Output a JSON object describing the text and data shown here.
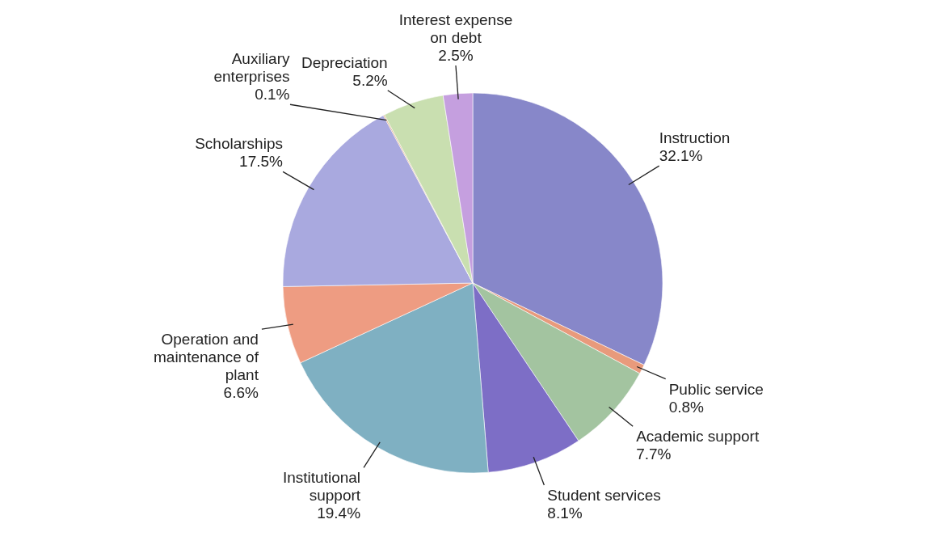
{
  "chart_data": {
    "type": "pie",
    "categories": [
      "Instruction",
      "Public service",
      "Academic support",
      "Student services",
      "Institutional support",
      "Operation and maintenance of plant",
      "Scholarships",
      "Auxiliary enterprises",
      "Depreciation",
      "Interest expense on debt"
    ],
    "values": [
      32.1,
      0.8,
      7.7,
      8.1,
      19.4,
      6.6,
      17.5,
      0.1,
      5.2,
      2.5
    ],
    "value_labels": [
      "32.1%",
      "0.8%",
      "7.7%",
      "8.1%",
      "19.4%",
      "6.6%",
      "17.5%",
      "0.1%",
      "5.2%",
      "2.5%"
    ],
    "colors": [
      "#8787c9",
      "#e89a7c",
      "#a3c4a0",
      "#7d6ec6",
      "#7fb0c2",
      "#ee9c82",
      "#a9a9df",
      "#e0a57e",
      "#c9dfb0",
      "#c59fdf"
    ]
  }
}
